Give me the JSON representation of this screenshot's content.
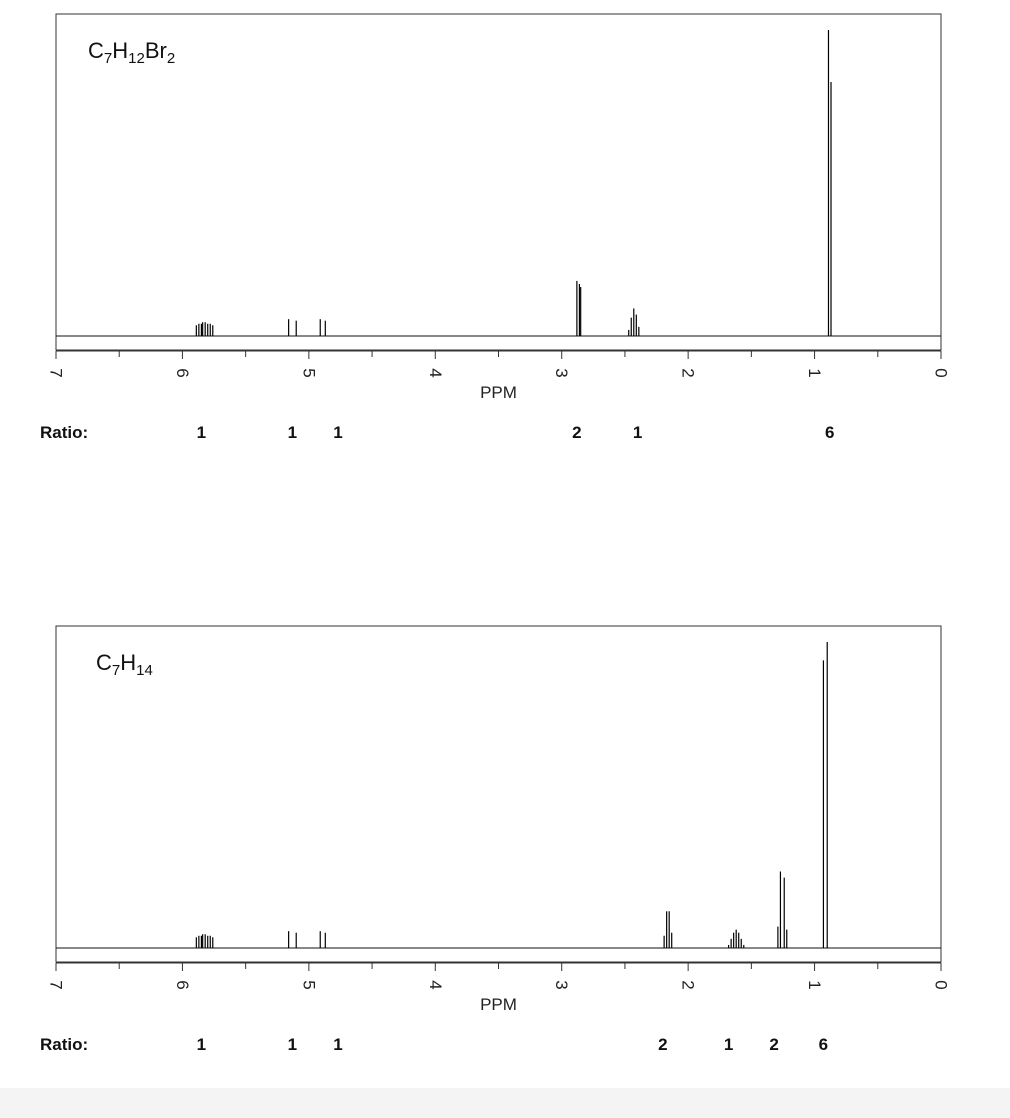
{
  "chart_data": [
    {
      "type": "line",
      "title": "C7H12Br2",
      "title_parts": [
        {
          "t": "C"
        },
        {
          "t": "7",
          "sub": true
        },
        {
          "t": "H"
        },
        {
          "t": "12",
          "sub": true
        },
        {
          "t": "Br"
        },
        {
          "t": "2",
          "sub": true
        }
      ],
      "xlabel": "PPM",
      "xlim": [
        7,
        0
      ],
      "x_ticks": [
        "7",
        "6",
        "5",
        "4",
        "3",
        "2",
        "1",
        "0"
      ],
      "ratio_label": "Ratio:",
      "peaks": [
        {
          "center": 5.82,
          "lines": [
            5.89,
            5.87,
            5.85,
            5.84,
            5.82,
            5.8,
            5.78,
            5.76
          ],
          "heights": [
            0.035,
            0.04,
            0.04,
            0.045,
            0.045,
            0.04,
            0.04,
            0.035
          ]
        },
        {
          "center": 5.13,
          "lines": [
            5.16,
            5.1
          ],
          "heights": [
            0.055,
            0.05
          ]
        },
        {
          "center": 4.88,
          "lines": [
            4.91,
            4.87
          ],
          "heights": [
            0.055,
            0.05
          ]
        },
        {
          "center": 2.86,
          "lines": [
            2.88,
            2.86,
            2.85
          ],
          "heights": [
            0.18,
            0.17,
            0.16
          ]
        },
        {
          "center": 2.42,
          "lines": [
            2.47,
            2.45,
            2.43,
            2.41,
            2.39
          ],
          "heights": [
            0.02,
            0.06,
            0.09,
            0.07,
            0.03
          ]
        },
        {
          "center": 0.88,
          "lines": [
            0.89,
            0.87
          ],
          "heights": [
            1.0,
            0.83
          ]
        }
      ],
      "ratios": [
        {
          "ppm": 5.85,
          "value": "1"
        },
        {
          "ppm": 5.13,
          "value": "1"
        },
        {
          "ppm": 4.77,
          "value": "1"
        },
        {
          "ppm": 2.88,
          "value": "2"
        },
        {
          "ppm": 2.4,
          "value": "1"
        },
        {
          "ppm": 0.88,
          "value": "6"
        }
      ]
    },
    {
      "type": "line",
      "title": "C7H14",
      "title_parts": [
        {
          "t": "C"
        },
        {
          "t": "7",
          "sub": true
        },
        {
          "t": "H"
        },
        {
          "t": "14",
          "sub": true
        }
      ],
      "xlabel": "PPM",
      "xlim": [
        7,
        0
      ],
      "x_ticks": [
        "7",
        "6",
        "5",
        "4",
        "3",
        "2",
        "1",
        "0"
      ],
      "ratio_label": "Ratio:",
      "peaks": [
        {
          "center": 5.82,
          "lines": [
            5.89,
            5.87,
            5.85,
            5.84,
            5.82,
            5.8,
            5.78,
            5.76
          ],
          "heights": [
            0.035,
            0.04,
            0.04,
            0.045,
            0.045,
            0.04,
            0.04,
            0.035
          ]
        },
        {
          "center": 5.13,
          "lines": [
            5.16,
            5.1
          ],
          "heights": [
            0.055,
            0.05
          ]
        },
        {
          "center": 4.88,
          "lines": [
            4.91,
            4.87
          ],
          "heights": [
            0.055,
            0.05
          ]
        },
        {
          "center": 2.15,
          "lines": [
            2.19,
            2.17,
            2.15,
            2.13
          ],
          "heights": [
            0.04,
            0.12,
            0.12,
            0.05
          ]
        },
        {
          "center": 1.62,
          "lines": [
            1.68,
            1.66,
            1.64,
            1.62,
            1.6,
            1.58,
            1.56
          ],
          "heights": [
            0.01,
            0.03,
            0.05,
            0.06,
            0.05,
            0.03,
            0.01
          ]
        },
        {
          "center": 1.25,
          "lines": [
            1.29,
            1.27,
            1.24,
            1.22
          ],
          "heights": [
            0.07,
            0.25,
            0.23,
            0.06
          ]
        },
        {
          "center": 0.91,
          "lines": [
            0.93,
            0.9
          ],
          "heights": [
            0.94,
            1.0
          ]
        }
      ],
      "ratios": [
        {
          "ppm": 5.85,
          "value": "1"
        },
        {
          "ppm": 5.13,
          "value": "1"
        },
        {
          "ppm": 4.77,
          "value": "1"
        },
        {
          "ppm": 2.2,
          "value": "2"
        },
        {
          "ppm": 1.68,
          "value": "1"
        },
        {
          "ppm": 1.32,
          "value": "2"
        },
        {
          "ppm": 0.93,
          "value": "6"
        }
      ]
    }
  ]
}
